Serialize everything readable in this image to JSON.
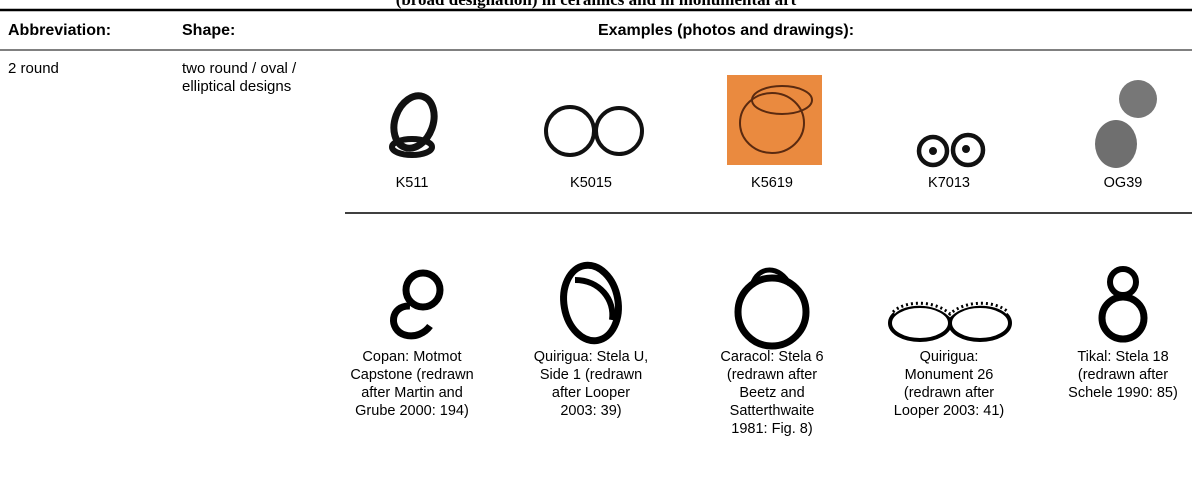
{
  "header": {
    "title": "(broad designation) in ceramics and in monumental art"
  },
  "table": {
    "columns": [
      "Abbreviation:",
      "Shape:",
      "Examples (photos and drawings):"
    ],
    "rows": [
      {
        "abbreviation": "2 round",
        "shape": "two round / oval / elliptical designs",
        "photos": [
          [
            "K511"
          ],
          [
            "K5015"
          ],
          [
            "K5619"
          ],
          [
            "K7013"
          ],
          [
            "OG39"
          ]
        ],
        "drawings": [
          [
            "Copan: Motmot",
            "Capstone (redrawn",
            "after Martin and",
            "Grube 2000: 194)"
          ],
          [
            "Quirigua: Stela U,",
            "Side 1 (redrawn",
            "after Looper",
            "2003: 39)"
          ],
          [
            "Caracol: Stela 6",
            "(redrawn after",
            "Beetz and",
            "Satterthwaite",
            "1981: Fig. 8)"
          ],
          [
            "Quirigua:",
            "Monument 26",
            "(redrawn after",
            "Looper 2003: 41)"
          ],
          [
            "Tikal: Stela 18",
            "(redrawn after",
            "Schele 1990: 85)"
          ]
        ]
      }
    ]
  }
}
